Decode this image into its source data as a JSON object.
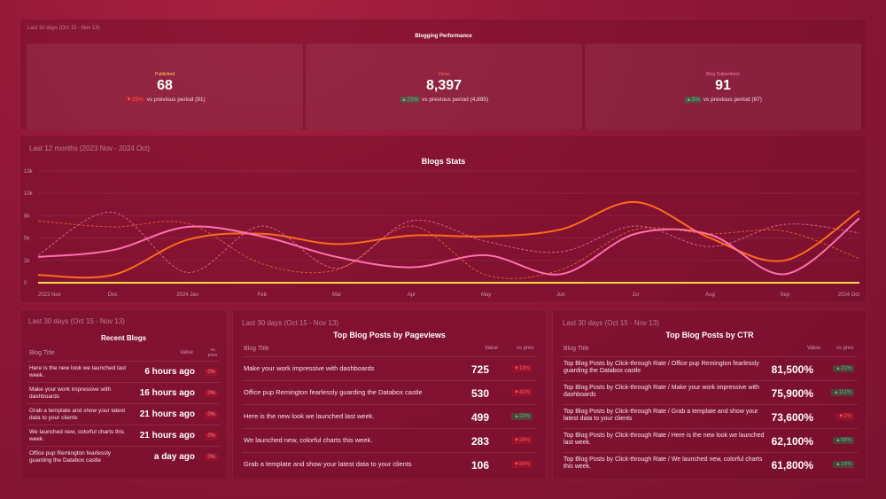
{
  "performance": {
    "period": "Last 30 days (Oct 15 - Nov 13)",
    "title": "Blogging Performance",
    "kpis": [
      {
        "label": "Published",
        "value": "68",
        "change": "25%",
        "direction": "down",
        "compare": "vs previous period (91)"
      },
      {
        "label": "Views",
        "value": "8,397",
        "change": "72%",
        "direction": "up",
        "compare": "vs previous period (4,895)"
      },
      {
        "label": "Blog Subscribers",
        "value": "91",
        "change": "5%",
        "direction": "up",
        "compare": "vs previous period (87)"
      }
    ]
  },
  "stats": {
    "period": "Last 12 months (2023 Nov - 2024 Oct)"
  },
  "chart_data": {
    "type": "line",
    "title": "Blogs Stats",
    "x": [
      "2023 Nov",
      "Dec",
      "2024 Jan",
      "Feb",
      "Mar",
      "Apr",
      "May",
      "Jun",
      "Jul",
      "Aug",
      "Sep",
      "2024 Oct"
    ],
    "ylim": [
      0,
      10000
    ],
    "yticks": [
      "0",
      "2k",
      "5k",
      "8k",
      "10k",
      "13k"
    ],
    "grid": true,
    "series": [
      {
        "values": [
          900,
          900,
          5000,
          5700,
          4500,
          5500,
          5400,
          6200,
          9400,
          5200,
          2600,
          8400
        ],
        "color": "#ff6b1a",
        "dashed": false
      },
      {
        "values": [
          3000,
          3800,
          6500,
          5400,
          3000,
          1800,
          3200,
          1000,
          5700,
          5600,
          1000,
          7500
        ],
        "color": "#ff6fb0",
        "dashed": false
      },
      {
        "values": [
          7200,
          6500,
          6900,
          2200,
          1500,
          6600,
          900,
          1500,
          6200,
          5700,
          6000,
          2800
        ],
        "color": "#ff7a2a",
        "dashed": true
      },
      {
        "values": [
          3200,
          8200,
          1200,
          6600,
          1700,
          7200,
          4800,
          3600,
          6600,
          4200,
          6800,
          5800
        ],
        "color": "#ff7fb4",
        "dashed": true
      },
      {
        "values": [
          0,
          0,
          0,
          0,
          0,
          0,
          0,
          0,
          0,
          0,
          0,
          0
        ],
        "color": "#ffd84a",
        "dashed": false
      }
    ]
  },
  "recent": {
    "period": "Last 30 days (Oct 15 - Nov 13)",
    "title": "Recent Blogs",
    "headers": {
      "title": "Blog Title",
      "value": "Value",
      "prev": "vs prev"
    },
    "rows": [
      {
        "title": "Here is the new look we launched last week.",
        "value": "6 hours ago",
        "change": "0%"
      },
      {
        "title": "Make your work impressive with dashboards",
        "value": "16 hours ago",
        "change": "0%"
      },
      {
        "title": "Grab a template and show your latest data to your clients",
        "value": "21 hours ago",
        "change": "0%"
      },
      {
        "title": "We launched new, colorful charts this week.",
        "value": "21 hours ago",
        "change": "0%"
      },
      {
        "title": "Office pup Remington fearlessly guarding the Databox castle",
        "value": "a day ago",
        "change": "0%"
      }
    ]
  },
  "pageviews": {
    "period": "Last 30 days (Oct 15 - Nov 13)",
    "title": "Top Blog Posts by Pageviews",
    "headers": {
      "title": "Blog Title",
      "value": "Value",
      "prev": "vs prev"
    },
    "rows": [
      {
        "title": "Make your work impressive with dashboards",
        "value": "725",
        "change": "19%",
        "direction": "down"
      },
      {
        "title": "Office pup Remington fearlessly guarding the Databox castle",
        "value": "530",
        "change": "41%",
        "direction": "down"
      },
      {
        "title": "Here is the new look we launched last week.",
        "value": "499",
        "change": "22%",
        "direction": "up"
      },
      {
        "title": "We launched new, colorful charts this week.",
        "value": "283",
        "change": "24%",
        "direction": "down"
      },
      {
        "title": "Grab a template and show your latest data to your clients",
        "value": "106",
        "change": "85%",
        "direction": "down"
      }
    ]
  },
  "ctr": {
    "period": "Last 30 days (Oct 15 - Nov 13)",
    "title": "Top Blog Posts by CTR",
    "headers": {
      "title": "Blog Title",
      "value": "Value",
      "prev": "vs prev"
    },
    "rows": [
      {
        "title": "Top Blog Posts by Click-through Rate / Office pup Remington fearlessly guarding the Databox castle",
        "value": "81,500%",
        "change": "21%",
        "direction": "up"
      },
      {
        "title": "Top Blog Posts by Click-through Rate / Make your work impressive with dashboards",
        "value": "75,900%",
        "change": "111%",
        "direction": "up"
      },
      {
        "title": "Top Blog Posts by Click-through Rate / Grab a template and show your latest data to your clients",
        "value": "73,600%",
        "change": "2%",
        "direction": "down"
      },
      {
        "title": "Top Blog Posts by Click-through Rate / Here is the new look we launched last week.",
        "value": "62,100%",
        "change": "98%",
        "direction": "up"
      },
      {
        "title": "Top Blog Posts by Click-through Rate / We launched new, colorful charts this week.",
        "value": "61,800%",
        "change": "14%",
        "direction": "up"
      }
    ]
  }
}
